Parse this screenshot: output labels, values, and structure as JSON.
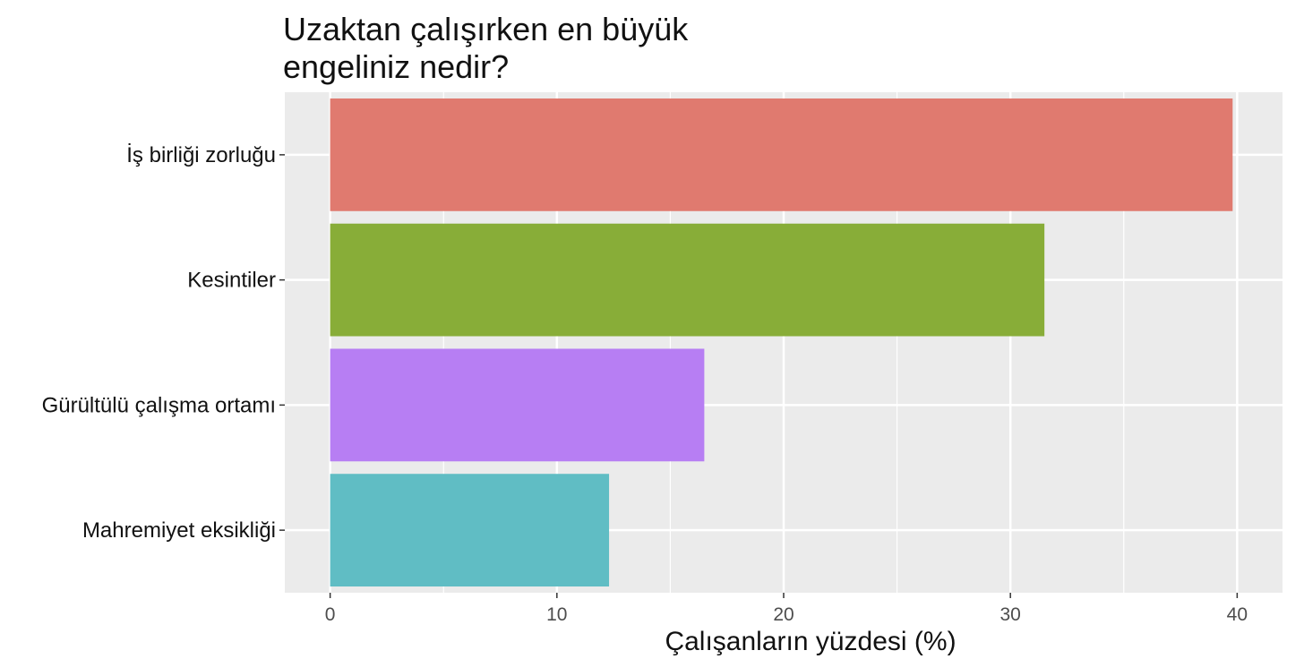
{
  "chart_data": {
    "type": "bar",
    "orientation": "horizontal",
    "title_lines": [
      "Uzaktan çalışırken en büyük",
      "engeliniz nedir?"
    ],
    "xlabel": "Çalışanların yüzdesi (%)",
    "ylabel": "",
    "categories": [
      "İş birliği zorluğu",
      "Kesintiler",
      "Gürültülü çalışma ortamı",
      "Mahremiyet eksikliği"
    ],
    "values": [
      39.8,
      31.5,
      16.5,
      12.3
    ],
    "colors": [
      "#e07a6f",
      "#88ad38",
      "#b77ef3",
      "#60bdc4"
    ],
    "xlim": [
      -2,
      42
    ],
    "x_ticks": [
      "0",
      "10",
      "20",
      "30",
      "40"
    ],
    "x_tick_values": [
      0,
      10,
      20,
      30,
      40
    ],
    "grid": true,
    "panel_background": "#ebebeb",
    "gridline_color": "#ffffff",
    "legend": "none"
  }
}
